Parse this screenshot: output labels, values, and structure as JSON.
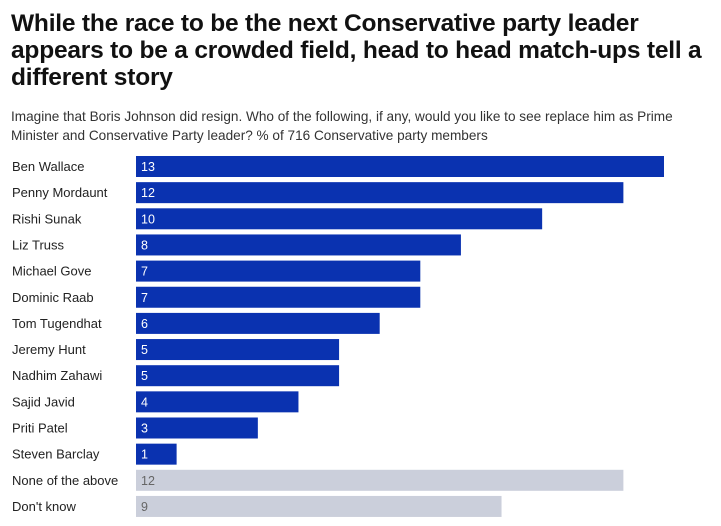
{
  "title": "While the race to be the next Conservative party leader appears to be a crowded field, head to head match-ups tell a different story",
  "subtitle": "Imagine that Boris Johnson did resign. Who of the following, if any, would you like to see replace him as Prime Minister and Conservative Party leader? % of 716 Conservative party members",
  "colors": {
    "primary": "#0a32b0",
    "secondary": "#cbcfdb",
    "primary_text": "#ffffff",
    "secondary_text": "#666666"
  },
  "chart_data": {
    "type": "bar",
    "orientation": "horizontal",
    "categories": [
      "Ben Wallace",
      "Penny Mordaunt",
      "Rishi Sunak",
      "Liz Truss",
      "Michael Gove",
      "Dominic Raab",
      "Tom Tugendhat",
      "Jeremy Hunt",
      "Nadhim Zahawi",
      "Sajid Javid",
      "Priti Patel",
      "Steven Barclay",
      "None of the above",
      "Don't know"
    ],
    "values": [
      13,
      12,
      10,
      8,
      7,
      7,
      6,
      5,
      5,
      4,
      3,
      1,
      12,
      9
    ],
    "highlight": [
      "primary",
      "primary",
      "primary",
      "primary",
      "primary",
      "primary",
      "primary",
      "primary",
      "primary",
      "primary",
      "primary",
      "primary",
      "secondary",
      "secondary"
    ],
    "xlim": [
      0,
      13
    ],
    "grid": false,
    "legend": "none"
  }
}
